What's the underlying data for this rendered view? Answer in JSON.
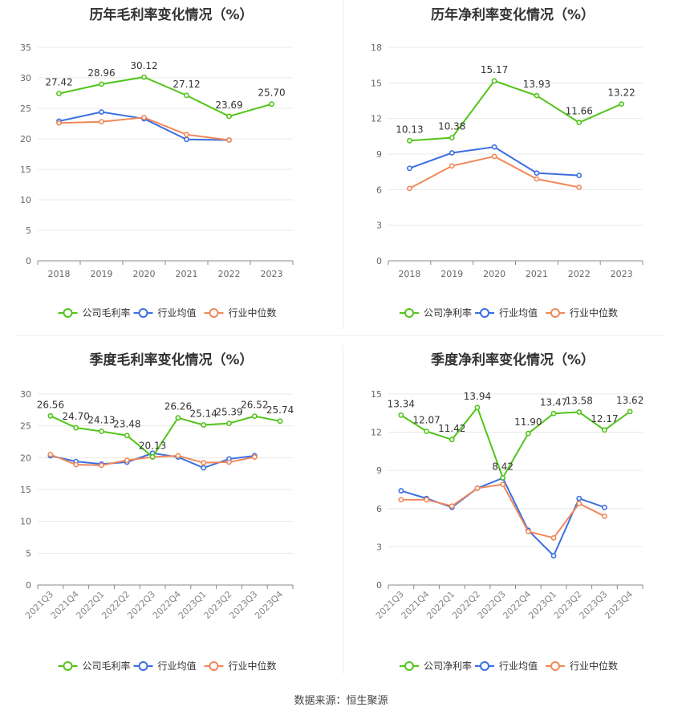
{
  "source": "数据来源：恒生聚源",
  "colors": {
    "company": "#52c41a",
    "avg": "#3b6fe0",
    "median": "#f0885a",
    "grid": "#e8e8e8",
    "axis": "#888888"
  },
  "chart_data": [
    {
      "type": "line",
      "title": "历年毛利率变化情况（%）",
      "categories": [
        "2018",
        "2019",
        "2020",
        "2021",
        "2022",
        "2023"
      ],
      "ylim": [
        0,
        35
      ],
      "yticks": [
        0,
        5,
        10,
        15,
        20,
        25,
        30,
        35
      ],
      "series": [
        {
          "name": "公司毛利率",
          "key": "company",
          "values": [
            27.42,
            28.96,
            30.12,
            27.12,
            23.69,
            25.7
          ],
          "labels": [
            "27.42",
            "28.96",
            "30.12",
            "27.12",
            "23.69",
            "25.70"
          ]
        },
        {
          "name": "行业均值",
          "key": "avg",
          "values": [
            22.9,
            24.4,
            23.3,
            19.9,
            19.8,
            null
          ]
        },
        {
          "name": "行业中位数",
          "key": "median",
          "values": [
            22.6,
            22.8,
            23.5,
            20.7,
            19.8,
            null
          ]
        }
      ]
    },
    {
      "type": "line",
      "title": "历年净利率变化情况（%）",
      "categories": [
        "2018",
        "2019",
        "2020",
        "2021",
        "2022",
        "2023"
      ],
      "ylim": [
        0,
        18
      ],
      "yticks": [
        0,
        3,
        6,
        9,
        12,
        15,
        18
      ],
      "series": [
        {
          "name": "公司净利率",
          "key": "company",
          "values": [
            10.13,
            10.38,
            15.17,
            13.93,
            11.66,
            13.22
          ],
          "labels": [
            "10.13",
            "10.38",
            "15.17",
            "13.93",
            "11.66",
            "13.22"
          ]
        },
        {
          "name": "行业均值",
          "key": "avg",
          "values": [
            7.8,
            9.1,
            9.6,
            7.4,
            7.2,
            null
          ]
        },
        {
          "name": "行业中位数",
          "key": "median",
          "values": [
            6.1,
            8.0,
            8.8,
            6.9,
            6.2,
            null
          ]
        }
      ]
    },
    {
      "type": "line",
      "title": "季度毛利率变化情况（%）",
      "categories": [
        "2021Q3",
        "2021Q4",
        "2022Q1",
        "2022Q2",
        "2022Q3",
        "2022Q4",
        "2023Q1",
        "2023Q2",
        "2023Q3",
        "2023Q4"
      ],
      "ylim": [
        0,
        30
      ],
      "yticks": [
        0,
        5,
        10,
        15,
        20,
        25,
        30
      ],
      "rotate_x": true,
      "series": [
        {
          "name": "公司毛利率",
          "key": "company",
          "values": [
            26.56,
            24.7,
            24.13,
            23.48,
            20.13,
            26.26,
            25.14,
            25.39,
            26.52,
            25.74
          ],
          "labels": [
            "26.56",
            "24.70",
            "24.13",
            "23.48",
            "20.13",
            "26.26",
            "25.14",
            "25.39",
            "26.52",
            "25.74"
          ]
        },
        {
          "name": "行业均值",
          "key": "avg",
          "values": [
            20.3,
            19.4,
            19.0,
            19.3,
            20.7,
            20.1,
            18.4,
            19.8,
            20.3,
            null
          ]
        },
        {
          "name": "行业中位数",
          "key": "median",
          "values": [
            20.5,
            18.9,
            18.8,
            19.6,
            20.1,
            20.3,
            19.2,
            19.3,
            20.1,
            null
          ]
        }
      ]
    },
    {
      "type": "line",
      "title": "季度净利率变化情况（%）",
      "categories": [
        "2021Q3",
        "2021Q4",
        "2022Q1",
        "2022Q2",
        "2022Q3",
        "2022Q4",
        "2023Q1",
        "2023Q2",
        "2023Q3",
        "2023Q4"
      ],
      "ylim": [
        0,
        15
      ],
      "yticks": [
        0,
        3,
        6,
        9,
        12,
        15
      ],
      "rotate_x": true,
      "series": [
        {
          "name": "公司净利率",
          "key": "company",
          "values": [
            13.34,
            12.07,
            11.42,
            13.94,
            8.42,
            11.9,
            13.47,
            13.58,
            12.17,
            13.62
          ],
          "labels": [
            "13.34",
            "12.07",
            "11.42",
            "13.94",
            "8.42",
            "11.90",
            "13.47",
            "13.58",
            "12.17",
            "13.62"
          ]
        },
        {
          "name": "行业均值",
          "key": "avg",
          "values": [
            7.4,
            6.8,
            6.1,
            7.6,
            8.4,
            4.3,
            2.3,
            6.8,
            6.1,
            null
          ]
        },
        {
          "name": "行业中位数",
          "key": "median",
          "values": [
            6.7,
            6.7,
            6.2,
            7.6,
            7.9,
            4.2,
            3.7,
            6.4,
            5.4,
            null
          ]
        }
      ]
    }
  ]
}
